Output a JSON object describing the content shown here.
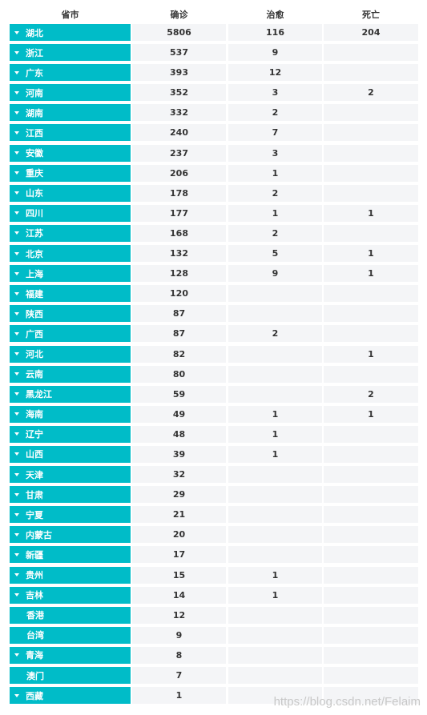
{
  "header": {
    "province": "省市",
    "confirmed": "确诊",
    "cured": "治愈",
    "dead": "死亡"
  },
  "rows": [
    {
      "name": "湖北",
      "confirmed": "5806",
      "cured": "116",
      "dead": "204",
      "expand": true
    },
    {
      "name": "浙江",
      "confirmed": "537",
      "cured": "9",
      "dead": "",
      "expand": true
    },
    {
      "name": "广东",
      "confirmed": "393",
      "cured": "12",
      "dead": "",
      "expand": true
    },
    {
      "name": "河南",
      "confirmed": "352",
      "cured": "3",
      "dead": "2",
      "expand": true
    },
    {
      "name": "湖南",
      "confirmed": "332",
      "cured": "2",
      "dead": "",
      "expand": true
    },
    {
      "name": "江西",
      "confirmed": "240",
      "cured": "7",
      "dead": "",
      "expand": true
    },
    {
      "name": "安徽",
      "confirmed": "237",
      "cured": "3",
      "dead": "",
      "expand": true
    },
    {
      "name": "重庆",
      "confirmed": "206",
      "cured": "1",
      "dead": "",
      "expand": true
    },
    {
      "name": "山东",
      "confirmed": "178",
      "cured": "2",
      "dead": "",
      "expand": true
    },
    {
      "name": "四川",
      "confirmed": "177",
      "cured": "1",
      "dead": "1",
      "expand": true
    },
    {
      "name": "江苏",
      "confirmed": "168",
      "cured": "2",
      "dead": "",
      "expand": true
    },
    {
      "name": "北京",
      "confirmed": "132",
      "cured": "5",
      "dead": "1",
      "expand": true
    },
    {
      "name": "上海",
      "confirmed": "128",
      "cured": "9",
      "dead": "1",
      "expand": true
    },
    {
      "name": "福建",
      "confirmed": "120",
      "cured": "",
      "dead": "",
      "expand": true
    },
    {
      "name": "陕西",
      "confirmed": "87",
      "cured": "",
      "dead": "",
      "expand": true
    },
    {
      "name": "广西",
      "confirmed": "87",
      "cured": "2",
      "dead": "",
      "expand": true
    },
    {
      "name": "河北",
      "confirmed": "82",
      "cured": "",
      "dead": "1",
      "expand": true
    },
    {
      "name": "云南",
      "confirmed": "80",
      "cured": "",
      "dead": "",
      "expand": true
    },
    {
      "name": "黑龙江",
      "confirmed": "59",
      "cured": "",
      "dead": "2",
      "expand": true
    },
    {
      "name": "海南",
      "confirmed": "49",
      "cured": "1",
      "dead": "1",
      "expand": true
    },
    {
      "name": "辽宁",
      "confirmed": "48",
      "cured": "1",
      "dead": "",
      "expand": true
    },
    {
      "name": "山西",
      "confirmed": "39",
      "cured": "1",
      "dead": "",
      "expand": true
    },
    {
      "name": "天津",
      "confirmed": "32",
      "cured": "",
      "dead": "",
      "expand": true
    },
    {
      "name": "甘肃",
      "confirmed": "29",
      "cured": "",
      "dead": "",
      "expand": true
    },
    {
      "name": "宁夏",
      "confirmed": "21",
      "cured": "",
      "dead": "",
      "expand": true
    },
    {
      "name": "内蒙古",
      "confirmed": "20",
      "cured": "",
      "dead": "",
      "expand": true
    },
    {
      "name": "新疆",
      "confirmed": "17",
      "cured": "",
      "dead": "",
      "expand": true
    },
    {
      "name": "贵州",
      "confirmed": "15",
      "cured": "1",
      "dead": "",
      "expand": true
    },
    {
      "name": "吉林",
      "confirmed": "14",
      "cured": "1",
      "dead": "",
      "expand": true
    },
    {
      "name": "香港",
      "confirmed": "12",
      "cured": "",
      "dead": "",
      "expand": false
    },
    {
      "name": "台湾",
      "confirmed": "9",
      "cured": "",
      "dead": "",
      "expand": false
    },
    {
      "name": "青海",
      "confirmed": "8",
      "cured": "",
      "dead": "",
      "expand": true
    },
    {
      "name": "澳门",
      "confirmed": "7",
      "cured": "",
      "dead": "",
      "expand": false
    },
    {
      "name": "西藏",
      "confirmed": "1",
      "cured": "",
      "dead": "",
      "expand": true
    }
  ],
  "watermark": "https://blog.csdn.net/Felaim",
  "colors": {
    "province_bg": "#00bcc8",
    "cell_bg": "#f4f5f7"
  }
}
